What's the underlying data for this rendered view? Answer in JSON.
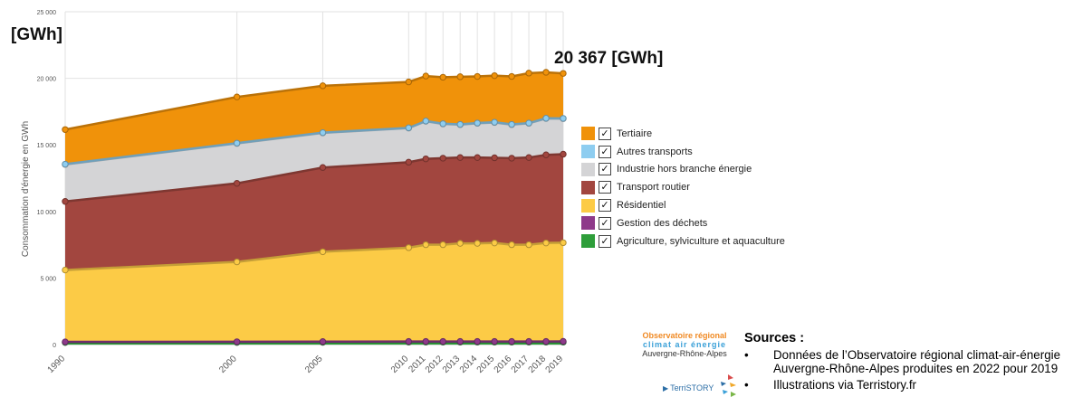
{
  "header": {
    "unit": "[GWh]",
    "total": "20 367 [GWh]"
  },
  "chart_data": {
    "type": "area",
    "stacked": true,
    "x": [
      1990,
      2000,
      2005,
      2010,
      2011,
      2012,
      2013,
      2014,
      2015,
      2016,
      2017,
      2018,
      2019
    ],
    "x_tick_labels": [
      "1990",
      "2000",
      "2005",
      "2010",
      "2011",
      "2012",
      "2013",
      "2014",
      "2015",
      "2016",
      "2017",
      "2018",
      "2019"
    ],
    "ylabel": "Consommation d'énergie en GWh",
    "ylim": [
      0,
      25000
    ],
    "y_ticks": [
      0,
      5000,
      10000,
      15000,
      20000,
      25000
    ],
    "y_tick_labels": [
      "0",
      "5 000",
      "10 000",
      "15 000",
      "20 000",
      "25 000"
    ],
    "grid": true,
    "legend_position": "right",
    "series": [
      {
        "name": "Agriculture, sylviculture et aquaculture",
        "color": "#2e9e3a",
        "values": [
          150,
          160,
          170,
          180,
          180,
          180,
          180,
          180,
          180,
          180,
          180,
          180,
          180
        ]
      },
      {
        "name": "Gestion des déchets",
        "color": "#8e3a8a",
        "values": [
          50,
          50,
          50,
          50,
          50,
          50,
          50,
          50,
          50,
          50,
          50,
          50,
          60
        ]
      },
      {
        "name": "Résidentiel",
        "color": "#fccb46",
        "values": [
          5400,
          6000,
          6750,
          7050,
          7270,
          7270,
          7370,
          7370,
          7400,
          7270,
          7270,
          7400,
          7410
        ]
      },
      {
        "name": "Transport routier",
        "color": "#a2463f",
        "values": [
          5150,
          5900,
          6330,
          6420,
          6450,
          6500,
          6450,
          6450,
          6400,
          6500,
          6550,
          6620,
          6650
        ]
      },
      {
        "name": "Industrie hors branche énergie",
        "color": "#d4d4d6",
        "values": [
          2780,
          3000,
          2600,
          2560,
          2820,
          2570,
          2470,
          2570,
          2650,
          2520,
          2570,
          2730,
          2670
        ]
      },
      {
        "name": "Autres transports",
        "color": "#8ecdf0",
        "values": [
          20,
          20,
          20,
          20,
          20,
          20,
          20,
          20,
          20,
          20,
          20,
          20,
          20
        ]
      },
      {
        "name": "Tertiaire",
        "color": "#f0920a",
        "values": [
          2600,
          3470,
          3520,
          3450,
          3380,
          3490,
          3580,
          3500,
          3500,
          3600,
          3750,
          3450,
          3380
        ]
      }
    ]
  },
  "logo": {
    "line1": "Observatoire régional",
    "line2": "climat air énergie",
    "line3": "Auvergne-Rhône-Alpes",
    "terri": "TerriSTORY"
  },
  "sources": {
    "title": "Sources :",
    "items": [
      "Données de l’Observatoire régional climat-air-énergie Auvergne-Rhône-Alpes produites en 2022 pour 2019",
      "Illustrations via Terristory.fr"
    ]
  }
}
